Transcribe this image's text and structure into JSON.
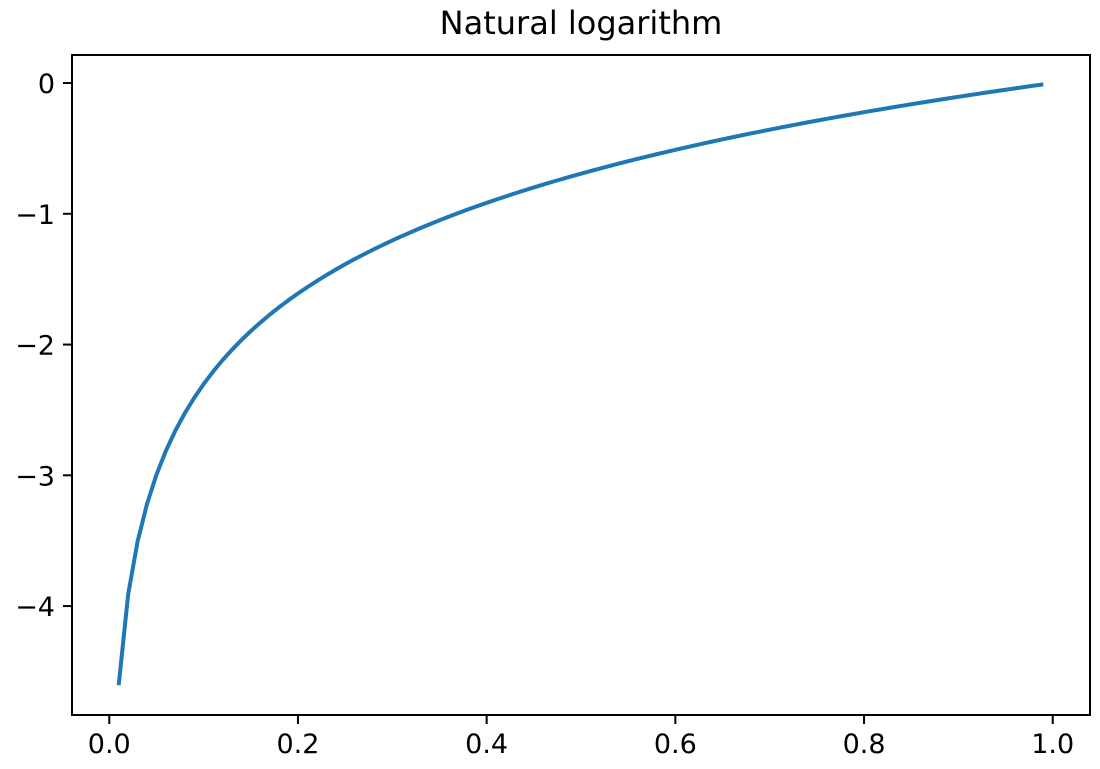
{
  "chart_data": {
    "type": "line",
    "title": "Natural logarithm",
    "xlabel": "",
    "ylabel": "",
    "xlim": [
      -0.0395,
      1.0395
    ],
    "ylim": [
      -4.833,
      0.2143
    ],
    "x_ticks": [
      0.0,
      0.2,
      0.4,
      0.6,
      0.8,
      1.0
    ],
    "x_tick_labels": [
      "0.0",
      "0.2",
      "0.4",
      "0.6",
      "0.8",
      "1.0"
    ],
    "y_ticks": [
      0,
      -1,
      -2,
      -3,
      -4
    ],
    "y_tick_labels": [
      "0",
      "−1",
      "−2",
      "−3",
      "−4"
    ],
    "grid": false,
    "series": [
      {
        "function": "ln(x)",
        "x_start": 0.01,
        "x_end": 0.99,
        "x_step": 0.01,
        "color": "#1f77b4"
      }
    ]
  }
}
